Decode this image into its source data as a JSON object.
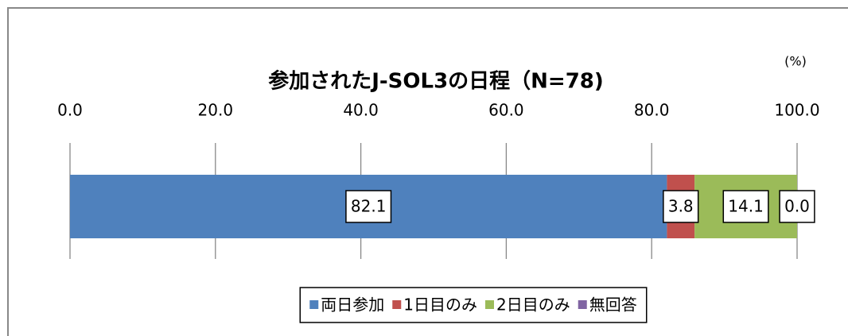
{
  "chart_data": {
    "type": "stacked_bar_horizontal",
    "title": "参加されたJ-SOL3の日程（N=78)",
    "unit_label": "(%)",
    "categories": [
      null
    ],
    "series": [
      {
        "name": "両日参加",
        "color": "#4f81bd",
        "values": [
          82.1
        ]
      },
      {
        "name": "1日目のみ",
        "color": "#c0504d",
        "values": [
          3.8
        ]
      },
      {
        "name": "2日目のみ",
        "color": "#9bbb59",
        "values": [
          14.1
        ]
      },
      {
        "name": "無回答",
        "color": "#8064a2",
        "values": [
          0
        ],
        "value_labels": [
          "0.0"
        ]
      }
    ],
    "xlim": [
      0,
      100
    ],
    "xticks": [
      {
        "value": 0,
        "label": "0.0"
      },
      {
        "value": 20,
        "label": "20.0"
      },
      {
        "value": 40,
        "label": "40.0"
      },
      {
        "value": 60,
        "label": "60.0"
      },
      {
        "value": 80,
        "label": "80.0"
      },
      {
        "value": 100,
        "label": "100.0"
      }
    ],
    "grid": true,
    "legend": "bottom"
  }
}
